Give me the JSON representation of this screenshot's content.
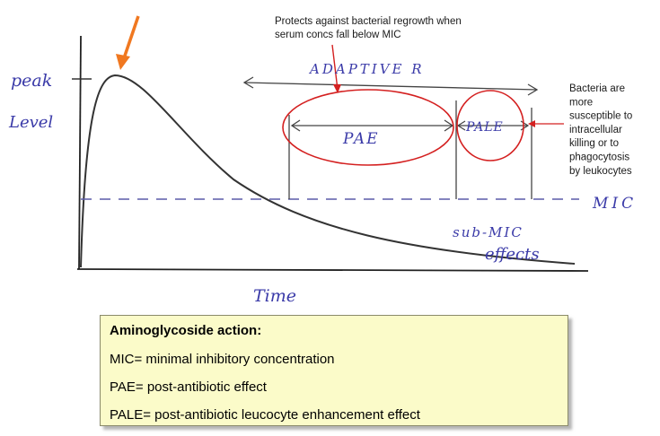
{
  "diagram": {
    "top_note": "Protects against bacterial regrowth when\nserum concs fall below MIC",
    "right_note": "Bacteria are\nmore\nsusceptible to\nintracellular\nkilling or to\nphagocytosis\nby leukocytes",
    "hand_labels": {
      "peak": "peak",
      "level": "Level",
      "adaptive": "ADAPTIVE R",
      "pae": "PAE",
      "pale": "PALE",
      "mic": "MIC",
      "sub_mic": "sub-MIC",
      "effects": "effects",
      "time": "Time"
    },
    "colors": {
      "curve": "#333333",
      "annotation_red": "#d42020",
      "peak_arrow": "#f07820",
      "hand_ink": "#3a3aa8",
      "legend_bg": "#fbfbc9"
    }
  },
  "legend": {
    "title": "Aminoglycoside action:",
    "lines": [
      "MIC= minimal inhibitory concentration",
      "PAE= post-antibiotic effect",
      "PALE= post-antibiotic leucocyte enhancement effect"
    ]
  }
}
